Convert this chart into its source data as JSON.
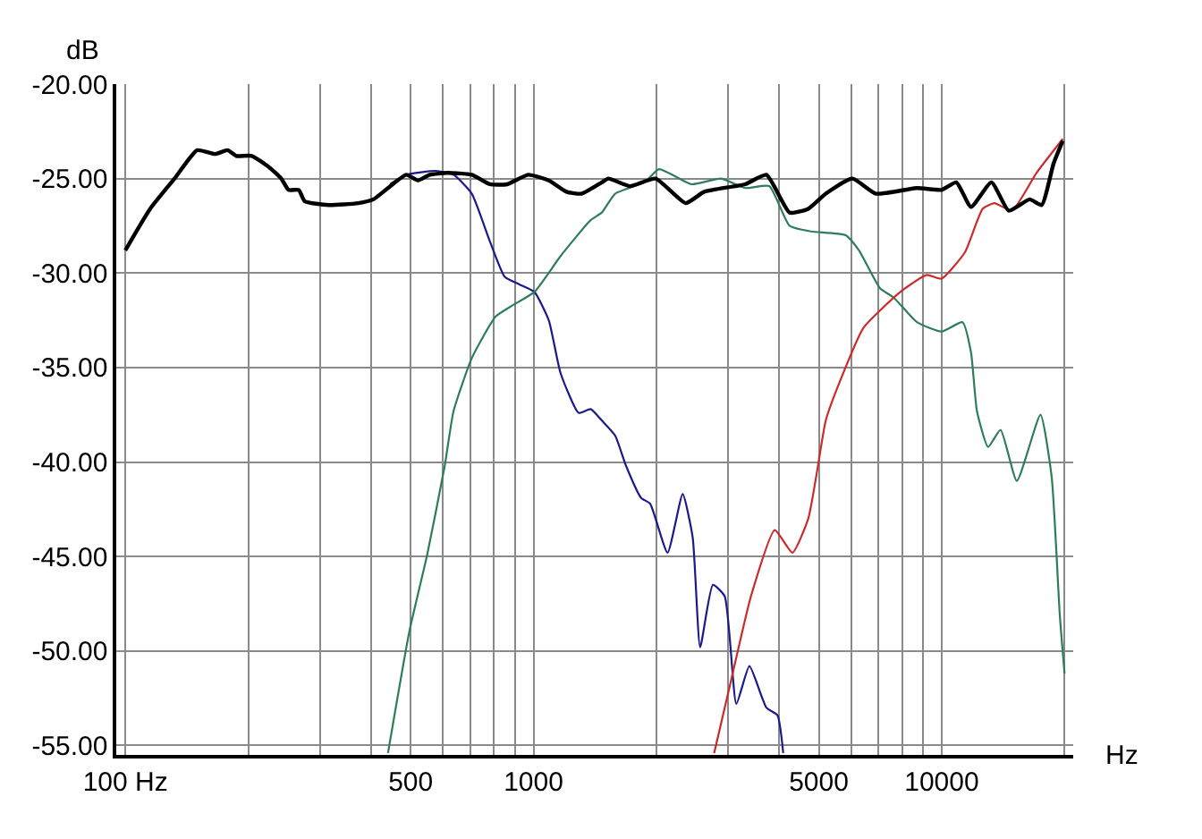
{
  "chart_data": {
    "type": "line",
    "xlabel": "Hz",
    "ylabel": "dB",
    "log": "x",
    "grid": true,
    "marker": "none",
    "line_style": "solid",
    "xlim": [
      95,
      21000
    ],
    "ylim": [
      -55.5,
      -20
    ],
    "xticks": [
      {
        "value": 100,
        "label": "100 Hz"
      },
      500,
      1000,
      5000,
      10000
    ],
    "yticks": [
      {
        "value": -55,
        "label": "-55.00"
      },
      {
        "value": -50,
        "label": "-50.00"
      },
      {
        "value": -45,
        "label": "-45.00"
      },
      {
        "value": -40,
        "label": "-40.00"
      },
      {
        "value": -35,
        "label": "-35.00"
      },
      {
        "value": -30,
        "label": "-30.00"
      },
      {
        "value": -25,
        "label": "-25.00"
      },
      {
        "value": -20,
        "label": "-20.00"
      }
    ],
    "series": [
      {
        "color": "#1a1a8c",
        "x": [
          445,
          488,
          576,
          637,
          706,
          781,
          850,
          923,
          1005,
          1090,
          1165,
          1290,
          1380,
          1470,
          1585,
          1685,
          1835,
          1930,
          2130,
          2320,
          2455,
          2560,
          2750,
          2940,
          3140,
          3380,
          3720,
          3960,
          4090
        ],
        "values": [
          -25.3,
          -24.8,
          -24.6,
          -24.8,
          -25.8,
          -28.3,
          -30.2,
          -30.6,
          -31.0,
          -32.5,
          -35.3,
          -37.4,
          -37.2,
          -37.8,
          -38.6,
          -40.2,
          -41.9,
          -42.2,
          -44.8,
          -41.7,
          -44.0,
          -49.8,
          -46.5,
          -47.1,
          -52.8,
          -50.8,
          -53.0,
          -53.4,
          -55.4
        ]
      },
      {
        "color": "#2e7d5a",
        "x": [
          440,
          496,
          549,
          606,
          637,
          706,
          808,
          890,
          1005,
          1165,
          1380,
          1470,
          1585,
          1870,
          2030,
          2440,
          2880,
          3300,
          3780,
          4240,
          4790,
          5820,
          6270,
          7060,
          7630,
          8700,
          9990,
          11250,
          11800,
          12200,
          12990,
          13940,
          15280,
          17460,
          18600,
          19470,
          20000
        ],
        "values": [
          -55.4,
          -49.0,
          -44.9,
          -40.2,
          -37.3,
          -34.5,
          -32.3,
          -31.7,
          -31.0,
          -29.1,
          -27.2,
          -26.8,
          -25.8,
          -25.2,
          -24.5,
          -25.3,
          -25.0,
          -25.5,
          -25.4,
          -27.5,
          -27.8,
          -28.0,
          -28.8,
          -30.8,
          -31.3,
          -32.6,
          -33.1,
          -32.6,
          -34.2,
          -37.3,
          -39.2,
          -38.3,
          -41.0,
          -37.5,
          -40.8,
          -48.1,
          -51.2
        ]
      },
      {
        "color": "#cc2a2a",
        "x": [
          2770,
          3030,
          3410,
          3900,
          4310,
          4710,
          4950,
          5200,
          5640,
          6430,
          7920,
          9190,
          9990,
          11400,
          12600,
          13470,
          14860,
          17070,
          19800
        ],
        "values": [
          -55.4,
          -51.8,
          -47.1,
          -43.6,
          -44.8,
          -43.0,
          -40.5,
          -37.8,
          -35.7,
          -32.9,
          -31.0,
          -30.1,
          -30.3,
          -28.9,
          -26.6,
          -26.3,
          -26.7,
          -24.7,
          -22.9
        ]
      },
      {
        "color": "#000000",
        "x": [
          100,
          115,
          132,
          150,
          166,
          178,
          187,
          204,
          225,
          241,
          251,
          266,
          275,
          315,
          372,
          405,
          440,
          488,
          521,
          557,
          615,
          706,
          781,
          862,
          970,
          1090,
          1204,
          1312,
          1470,
          1525,
          1723,
          1990,
          2360,
          2620,
          3300,
          3720,
          4240,
          4710,
          5200,
          6040,
          6900,
          8700,
          9990,
          10860,
          11800,
          13240,
          14600,
          16430,
          17580,
          18800,
          19800
        ],
        "values": [
          -28.8,
          -26.6,
          -25.0,
          -23.5,
          -23.7,
          -23.5,
          -23.8,
          -23.8,
          -24.4,
          -25.0,
          -25.6,
          -25.6,
          -26.2,
          -26.4,
          -26.3,
          -26.1,
          -25.5,
          -24.8,
          -25.1,
          -24.8,
          -24.7,
          -24.8,
          -25.3,
          -25.3,
          -24.8,
          -25.1,
          -25.7,
          -25.8,
          -25.2,
          -25.0,
          -25.4,
          -25.0,
          -26.3,
          -25.7,
          -25.3,
          -24.8,
          -26.8,
          -26.6,
          -25.8,
          -25.0,
          -25.8,
          -25.5,
          -25.6,
          -25.2,
          -26.5,
          -25.2,
          -26.7,
          -26.1,
          -26.4,
          -24.2,
          -23.0
        ]
      }
    ]
  }
}
